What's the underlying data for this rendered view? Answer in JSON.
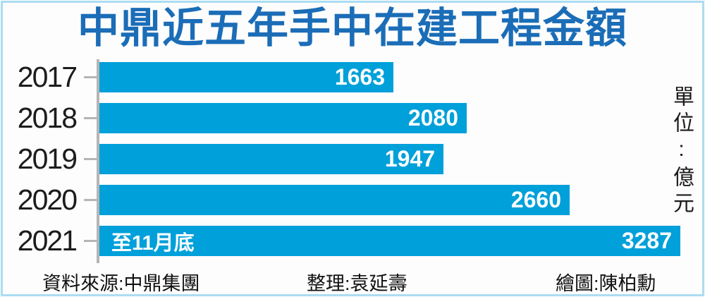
{
  "chart_data": {
    "type": "bar",
    "orientation": "horizontal",
    "title": "中鼎近五年手中在建工程金額",
    "categories": [
      "2017",
      "2018",
      "2019",
      "2020",
      "2021"
    ],
    "values": [
      1663,
      2080,
      1947,
      2660,
      3287
    ],
    "annotations": [
      {
        "category": "2021",
        "label": "至11月底"
      }
    ],
    "unit_label": "單位:億元",
    "xlim": [
      0,
      3287
    ],
    "legend": "none",
    "grid": false,
    "bar_color": "#00a0da",
    "title_color": "#1b6db7",
    "axis_color": "#b5b5b5",
    "value_label_color": "#ffffff",
    "frame_border_color": "#abdcf1"
  },
  "footer": {
    "source": "資料來源:中鼎集團",
    "editor": "整理:袁延壽",
    "illustrator": "繪圖:陳柏勳"
  }
}
